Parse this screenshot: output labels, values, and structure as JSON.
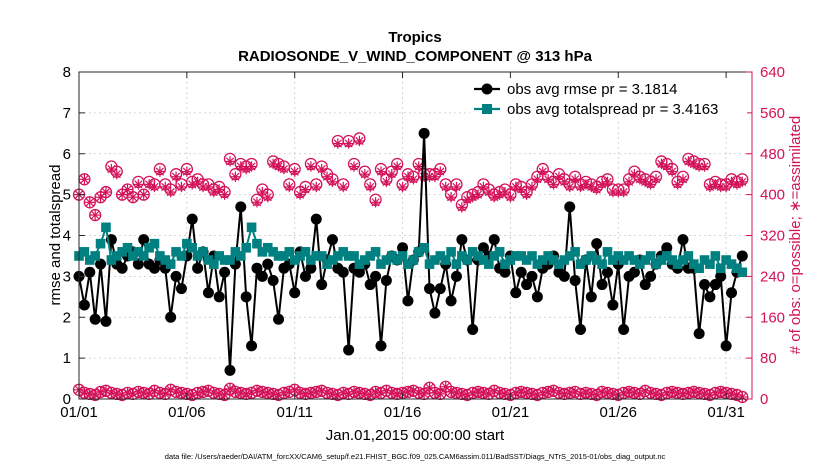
{
  "chart_data": {
    "type": "line",
    "title": "Tropics",
    "subtitle": "RADIOSONDE_V_WIND_COMPONENT @ 313 hPa",
    "xlabel": "Jan.01,2015 00:00:00 start",
    "ylabel": "rmse and totalspread",
    "y2label": "# of obs: o=possible; ∗=assimilated",
    "footnote": "data file: /Users/raeder/DAI/ATM_forcXX/CAM6_setup/f.e21.FHIST_BGC.f09_025.CAM6assim.011/BadSST/Diags_NTrS_2015-01/obs_diag_output.nc",
    "xlim": [
      0,
      31.2
    ],
    "ylim": [
      0,
      8
    ],
    "y2lim": [
      0,
      640
    ],
    "xticks": [
      0,
      5,
      10,
      15,
      20,
      25,
      30
    ],
    "xticklabels": [
      "01/01",
      "01/06",
      "01/11",
      "01/16",
      "01/21",
      "01/26",
      "01/31"
    ],
    "yticks": [
      0,
      1,
      2,
      3,
      4,
      5,
      6,
      7,
      8
    ],
    "y2ticks": [
      0,
      80,
      160,
      240,
      320,
      400,
      480,
      560,
      640
    ],
    "x_step_days": 0.25,
    "colors": {
      "rmse": "#000000",
      "spread": "#008080",
      "obs": "#d3135a"
    },
    "legend": [
      {
        "label": "obs avg rmse pr = 3.1814",
        "color": "#000000",
        "marker": "circle"
      },
      {
        "label": "obs avg totalspread pr = 3.4163",
        "color": "#008080",
        "marker": "square"
      }
    ],
    "series": [
      {
        "name": "obs avg rmse",
        "axis": "left",
        "values": [
          3.0,
          2.3,
          3.1,
          1.95,
          3.3,
          1.9,
          3.9,
          3.3,
          3.2,
          3.5,
          3.6,
          3.3,
          3.9,
          3.3,
          3.2,
          3.4,
          3.2,
          2.0,
          3.0,
          2.7,
          3.5,
          4.4,
          3.2,
          3.6,
          2.6,
          3.5,
          2.5,
          3.1,
          0.7,
          3.3,
          4.7,
          2.5,
          1.3,
          3.2,
          3.0,
          3.3,
          2.9,
          1.95,
          3.2,
          3.3,
          2.6,
          3.6,
          3.0,
          3.2,
          4.4,
          2.8,
          3.4,
          3.9,
          3.2,
          3.1,
          1.2,
          3.2,
          3.1,
          3.3,
          2.8,
          3.0,
          1.3,
          2.9,
          3.5,
          3.4,
          3.7,
          2.4,
          3.4,
          3.6,
          6.5,
          2.7,
          2.1,
          2.7,
          3.3,
          2.4,
          3.0,
          3.9,
          3.4,
          1.7,
          3.4,
          3.7,
          3.5,
          3.9,
          3.2,
          3.1,
          3.5,
          2.6,
          3.1,
          2.8,
          3.0,
          2.5,
          3.2,
          3.3,
          3.5,
          3.1,
          3.0,
          4.7,
          2.9,
          1.7,
          3.4,
          2.5,
          3.8,
          2.8,
          3.1,
          2.3,
          3.3,
          1.7,
          3.0,
          3.1,
          3.4,
          2.8,
          3.0,
          3.3,
          3.5,
          3.7,
          3.3,
          3.2,
          3.9,
          3.2,
          3.2,
          1.6,
          2.8,
          2.5,
          2.8,
          3.0,
          1.3,
          2.6,
          3.1,
          3.5
        ]
      },
      {
        "name": "obs avg totalspread",
        "axis": "left",
        "values": [
          3.5,
          3.6,
          3.4,
          3.5,
          3.8,
          4.2,
          3.4,
          3.5,
          3.6,
          3.7,
          3.5,
          3.6,
          3.5,
          3.7,
          3.8,
          3.5,
          3.4,
          3.3,
          3.6,
          3.5,
          3.8,
          3.7,
          3.5,
          3.6,
          3.4,
          3.3,
          3.5,
          3.4,
          3.4,
          3.6,
          3.5,
          3.7,
          4.2,
          3.8,
          3.6,
          3.7,
          3.6,
          3.5,
          3.5,
          3.6,
          3.4,
          3.5,
          3.6,
          3.4,
          3.5,
          3.5,
          3.3,
          3.4,
          3.5,
          3.6,
          3.5,
          3.5,
          3.3,
          3.4,
          3.5,
          3.6,
          3.3,
          3.4,
          3.5,
          3.4,
          3.5,
          3.3,
          3.4,
          3.6,
          3.7,
          3.3,
          3.4,
          3.5,
          3.4,
          3.6,
          3.3,
          3.5,
          3.4,
          3.6,
          3.5,
          3.4,
          3.3,
          3.5,
          3.6,
          3.3,
          3.4,
          3.5,
          3.5,
          3.4,
          3.5,
          3.3,
          3.4,
          3.5,
          3.4,
          3.3,
          3.4,
          3.5,
          3.6,
          3.3,
          3.4,
          3.5,
          3.4,
          3.3,
          3.6,
          3.4,
          3.5,
          3.4,
          3.5,
          3.4,
          3.3,
          3.4,
          3.5,
          3.3,
          3.4,
          3.5,
          3.4,
          3.3,
          3.4,
          3.5,
          3.3,
          3.2,
          3.4,
          3.3,
          3.5,
          3.2,
          3.4,
          3.3,
          3.2,
          3.1
        ]
      },
      {
        "name": "possible obs",
        "axis": "right",
        "values": [
          400,
          430,
          385,
          360,
          395,
          405,
          455,
          445,
          400,
          410,
          395,
          425,
          400,
          425,
          420,
          450,
          420,
          410,
          440,
          420,
          450,
          425,
          430,
          420,
          420,
          410,
          415,
          405,
          470,
          440,
          460,
          455,
          460,
          390,
          410,
          400,
          465,
          460,
          455,
          420,
          450,
          405,
          415,
          460,
          420,
          455,
          440,
          430,
          505,
          420,
          505,
          460,
          510,
          445,
          420,
          390,
          450,
          430,
          445,
          460,
          420,
          440,
          435,
          460,
          440,
          440,
          440,
          450,
          420,
          400,
          420,
          380,
          395,
          400,
          405,
          420,
          410,
          400,
          405,
          410,
          400,
          420,
          415,
          405,
          420,
          435,
          450,
          435,
          425,
          440,
          430,
          420,
          435,
          420,
          425,
          420,
          415,
          425,
          430,
          410,
          410,
          410,
          430,
          445,
          435,
          430,
          425,
          435,
          465,
          460,
          450,
          425,
          435,
          470,
          465,
          460,
          460,
          420,
          425,
          420,
          420,
          430,
          425,
          430
        ]
      },
      {
        "name": "assimilated obs",
        "axis": "right",
        "values": [
          400,
          430,
          385,
          360,
          395,
          405,
          450,
          440,
          400,
          410,
          395,
          420,
          400,
          420,
          415,
          445,
          415,
          405,
          435,
          415,
          445,
          420,
          425,
          415,
          415,
          405,
          410,
          400,
          465,
          435,
          455,
          450,
          455,
          385,
          405,
          395,
          460,
          455,
          450,
          415,
          445,
          400,
          410,
          455,
          415,
          450,
          435,
          425,
          500,
          415,
          500,
          455,
          505,
          440,
          415,
          385,
          445,
          425,
          440,
          455,
          415,
          435,
          430,
          455,
          435,
          435,
          435,
          445,
          415,
          395,
          415,
          375,
          390,
          395,
          400,
          415,
          405,
          395,
          400,
          405,
          395,
          415,
          410,
          400,
          415,
          430,
          445,
          430,
          420,
          435,
          425,
          415,
          430,
          415,
          420,
          415,
          410,
          420,
          425,
          405,
          405,
          405,
          425,
          440,
          430,
          425,
          420,
          430,
          460,
          455,
          445,
          420,
          430,
          465,
          460,
          455,
          455,
          415,
          420,
          415,
          415,
          425,
          420,
          425
        ]
      },
      {
        "name": "possible obs (bottom)",
        "axis": "right",
        "values": [
          18,
          12,
          10,
          8,
          14,
          16,
          12,
          10,
          8,
          12,
          10,
          14,
          12,
          10,
          16,
          12,
          10,
          18,
          14,
          12,
          10,
          8,
          12,
          14,
          16,
          12,
          10,
          8,
          20,
          14,
          12,
          10,
          12,
          16,
          14,
          12,
          10,
          8,
          12,
          14,
          18,
          12,
          10,
          12,
          14,
          16,
          12,
          10,
          8,
          12,
          10,
          14,
          12,
          10,
          8,
          14,
          12,
          16,
          12,
          10,
          12,
          14,
          16,
          12,
          10,
          22,
          12,
          10,
          24,
          14,
          12,
          10,
          8,
          12,
          14,
          12,
          10,
          16,
          12,
          10,
          8,
          12,
          14,
          12,
          10,
          8,
          12,
          14,
          16,
          12,
          10,
          12,
          14,
          10,
          12,
          10,
          8,
          14,
          12,
          10,
          8,
          12,
          14,
          12,
          10,
          16,
          12,
          10,
          8,
          12,
          14,
          12,
          10,
          12,
          14,
          12,
          10,
          8,
          12,
          14,
          12,
          10,
          8,
          4
        ]
      }
    ]
  }
}
